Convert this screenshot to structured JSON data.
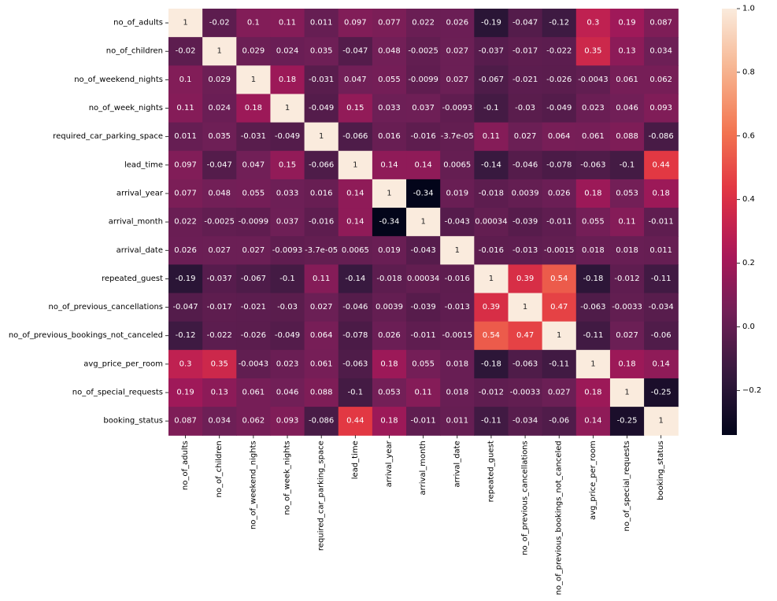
{
  "chart_data": {
    "type": "heatmap",
    "title": "",
    "xlabel": "",
    "ylabel": "",
    "variables": [
      "no_of_adults",
      "no_of_children",
      "no_of_weekend_nights",
      "no_of_week_nights",
      "required_car_parking_space",
      "lead_time",
      "arrival_year",
      "arrival_month",
      "arrival_date",
      "repeated_guest",
      "no_of_previous_cancellations",
      "no_of_previous_bookings_not_canceled",
      "avg_price_per_room",
      "no_of_special_requests",
      "booking_status"
    ],
    "matrix": [
      [
        1,
        -0.02,
        0.1,
        0.11,
        0.011,
        0.097,
        0.077,
        0.022,
        0.026,
        -0.19,
        -0.047,
        -0.12,
        0.3,
        0.19,
        0.087
      ],
      [
        -0.02,
        1,
        0.029,
        0.024,
        0.035,
        -0.047,
        0.048,
        -0.0025,
        0.027,
        -0.037,
        -0.017,
        -0.022,
        0.35,
        0.13,
        0.034
      ],
      [
        0.1,
        0.029,
        1,
        0.18,
        -0.031,
        0.047,
        0.055,
        -0.0099,
        0.027,
        -0.067,
        -0.021,
        -0.026,
        -0.0043,
        0.061,
        0.062
      ],
      [
        0.11,
        0.024,
        0.18,
        1,
        -0.049,
        0.15,
        0.033,
        0.037,
        -0.0093,
        -0.1,
        -0.03,
        -0.049,
        0.023,
        0.046,
        0.093
      ],
      [
        0.011,
        0.035,
        -0.031,
        -0.049,
        1,
        -0.066,
        0.016,
        -0.016,
        -3.7e-05,
        0.11,
        0.027,
        0.064,
        0.061,
        0.088,
        -0.086
      ],
      [
        0.097,
        -0.047,
        0.047,
        0.15,
        -0.066,
        1,
        0.14,
        0.14,
        0.0065,
        -0.14,
        -0.046,
        -0.078,
        -0.063,
        -0.1,
        0.44
      ],
      [
        0.077,
        0.048,
        0.055,
        0.033,
        0.016,
        0.14,
        1,
        -0.34,
        0.019,
        -0.018,
        0.0039,
        0.026,
        0.18,
        0.053,
        0.18
      ],
      [
        0.022,
        -0.0025,
        -0.0099,
        0.037,
        -0.016,
        0.14,
        -0.34,
        1,
        -0.043,
        0.00034,
        -0.039,
        -0.011,
        0.055,
        0.11,
        -0.011
      ],
      [
        0.026,
        0.027,
        0.027,
        -0.0093,
        -3.7e-05,
        0.0065,
        0.019,
        -0.043,
        1,
        -0.016,
        -0.013,
        -0.0015,
        0.018,
        0.018,
        0.011
      ],
      [
        -0.19,
        -0.037,
        -0.067,
        -0.1,
        0.11,
        -0.14,
        -0.018,
        0.00034,
        -0.016,
        1,
        0.39,
        0.54,
        -0.18,
        -0.012,
        -0.11
      ],
      [
        -0.047,
        -0.017,
        -0.021,
        -0.03,
        0.027,
        -0.046,
        0.0039,
        -0.039,
        -0.013,
        0.39,
        1,
        0.47,
        -0.063,
        -0.0033,
        -0.034
      ],
      [
        -0.12,
        -0.022,
        -0.026,
        -0.049,
        0.064,
        -0.078,
        0.026,
        -0.011,
        -0.0015,
        0.54,
        0.47,
        1,
        -0.11,
        0.027,
        -0.06
      ],
      [
        0.3,
        0.35,
        -0.0043,
        0.023,
        0.061,
        -0.063,
        0.18,
        0.055,
        0.018,
        -0.18,
        -0.063,
        -0.11,
        1,
        0.18,
        0.14
      ],
      [
        0.19,
        0.13,
        0.061,
        0.046,
        0.088,
        -0.1,
        0.053,
        0.11,
        0.018,
        -0.012,
        -0.0033,
        0.027,
        0.18,
        1,
        -0.25
      ],
      [
        0.087,
        0.034,
        0.062,
        0.093,
        -0.086,
        0.44,
        0.18,
        -0.011,
        0.011,
        -0.11,
        -0.034,
        -0.06,
        0.14,
        -0.25,
        1
      ]
    ],
    "cell_labels": [
      [
        "1",
        "-0.02",
        "0.1",
        "0.11",
        "0.011",
        "0.097",
        "0.077",
        "0.022",
        "0.026",
        "-0.19",
        "-0.047",
        "-0.12",
        "0.3",
        "0.19",
        "0.087"
      ],
      [
        "-0.02",
        "1",
        "0.029",
        "0.024",
        "0.035",
        "-0.047",
        "0.048",
        "-0.0025",
        "0.027",
        "-0.037",
        "-0.017",
        "-0.022",
        "0.35",
        "0.13",
        "0.034"
      ],
      [
        "0.1",
        "0.029",
        "1",
        "0.18",
        "-0.031",
        "0.047",
        "0.055",
        "-0.0099",
        "0.027",
        "-0.067",
        "-0.021",
        "-0.026",
        "-0.0043",
        "0.061",
        "0.062"
      ],
      [
        "0.11",
        "0.024",
        "0.18",
        "1",
        "-0.049",
        "0.15",
        "0.033",
        "0.037",
        "-0.0093",
        "-0.1",
        "-0.03",
        "-0.049",
        "0.023",
        "0.046",
        "0.093"
      ],
      [
        "0.011",
        "0.035",
        "-0.031",
        "-0.049",
        "1",
        "-0.066",
        "0.016",
        "-0.016",
        "-3.7e-05",
        "0.11",
        "0.027",
        "0.064",
        "0.061",
        "0.088",
        "-0.086"
      ],
      [
        "0.097",
        "-0.047",
        "0.047",
        "0.15",
        "-0.066",
        "1",
        "0.14",
        "0.14",
        "0.0065",
        "-0.14",
        "-0.046",
        "-0.078",
        "-0.063",
        "-0.1",
        "0.44"
      ],
      [
        "0.077",
        "0.048",
        "0.055",
        "0.033",
        "0.016",
        "0.14",
        "1",
        "-0.34",
        "0.019",
        "-0.018",
        "0.0039",
        "0.026",
        "0.18",
        "0.053",
        "0.18"
      ],
      [
        "0.022",
        "-0.0025",
        "-0.0099",
        "0.037",
        "-0.016",
        "0.14",
        "-0.34",
        "1",
        "-0.043",
        "0.00034",
        "-0.039",
        "-0.011",
        "0.055",
        "0.11",
        "-0.011"
      ],
      [
        "0.026",
        "0.027",
        "0.027",
        "-0.0093",
        "-3.7e-05",
        "0.0065",
        "0.019",
        "-0.043",
        "1",
        "-0.016",
        "-0.013",
        "-0.0015",
        "0.018",
        "0.018",
        "0.011"
      ],
      [
        "-0.19",
        "-0.037",
        "-0.067",
        "-0.1",
        "0.11",
        "-0.14",
        "-0.018",
        "0.00034",
        "-0.016",
        "1",
        "0.39",
        "0.54",
        "-0.18",
        "-0.012",
        "-0.11"
      ],
      [
        "-0.047",
        "-0.017",
        "-0.021",
        "-0.03",
        "0.027",
        "-0.046",
        "0.0039",
        "-0.039",
        "-0.013",
        "0.39",
        "1",
        "0.47",
        "-0.063",
        "-0.0033",
        "-0.034"
      ],
      [
        "-0.12",
        "-0.022",
        "-0.026",
        "-0.049",
        "0.064",
        "-0.078",
        "0.026",
        "-0.011",
        "-0.0015",
        "0.54",
        "0.47",
        "1",
        "-0.11",
        "0.027",
        "-0.06"
      ],
      [
        "0.3",
        "0.35",
        "-0.0043",
        "0.023",
        "0.061",
        "-0.063",
        "0.18",
        "0.055",
        "0.018",
        "-0.18",
        "-0.063",
        "-0.11",
        "1",
        "0.18",
        "0.14"
      ],
      [
        "0.19",
        "0.13",
        "0.061",
        "0.046",
        "0.088",
        "-0.1",
        "0.053",
        "0.11",
        "0.018",
        "-0.012",
        "-0.0033",
        "0.027",
        "0.18",
        "1",
        "-0.25"
      ],
      [
        "0.087",
        "0.034",
        "0.062",
        "0.093",
        "-0.086",
        "0.44",
        "0.18",
        "-0.011",
        "0.011",
        "-0.11",
        "-0.034",
        "-0.06",
        "0.14",
        "-0.25",
        "1"
      ]
    ],
    "colorbar": {
      "vmin": -0.34,
      "vmax": 1,
      "ticks": [
        -0.2,
        0,
        0.2,
        0.4,
        0.6,
        0.8,
        1
      ],
      "tick_labels": [
        "−0.2",
        "0.0",
        "0.2",
        "0.4",
        "0.6",
        "0.8",
        "1.0"
      ]
    },
    "colormap": "rocket",
    "colormap_stops": [
      "#03051a",
      "#35193e",
      "#701f57",
      "#ad1759",
      "#e13342",
      "#f37651",
      "#f6b48f",
      "#faebdd"
    ],
    "grid": false,
    "legend": "colorbar-right"
  }
}
